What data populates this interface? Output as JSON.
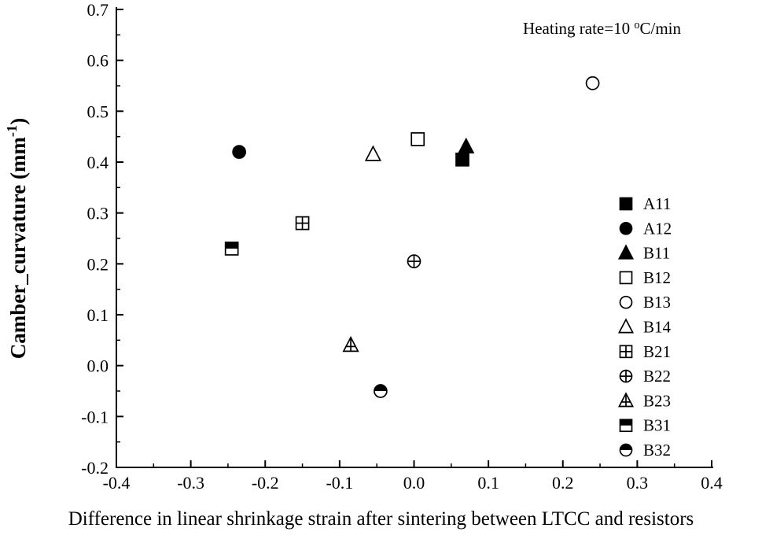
{
  "chart_data": {
    "type": "scatter",
    "title": "",
    "xlabel": "Difference in linear shrinkage strain after sintering between LTCC and resistors",
    "ylabel": {
      "text": "Camber_curvature (mm⁻¹)",
      "prefix": "Camber_curvature (mm",
      "sup": "-1",
      "suffix": ")"
    },
    "annotation": {
      "text": "Heating rate=10 °C/min",
      "prefix": "Heating rate=10 ",
      "sup": "o",
      "suffix": "C/min"
    },
    "xlim": [
      -0.4,
      0.4
    ],
    "ylim": [
      -0.2,
      0.7
    ],
    "x_tick_labels": [
      "-0.4",
      "-0.3",
      "-0.2",
      "-0.1",
      "0.0",
      "0.1",
      "0.2",
      "0.3",
      "0.4"
    ],
    "y_tick_labels": [
      "-0.2",
      "-0.1",
      "0.0",
      "0.1",
      "0.2",
      "0.3",
      "0.4",
      "0.5",
      "0.6",
      "0.7"
    ],
    "grid": false,
    "legend_position": "middle-right",
    "series": [
      {
        "name": "A11",
        "marker": "filled-square",
        "points": [
          [
            0.065,
            0.405
          ]
        ]
      },
      {
        "name": "A12",
        "marker": "filled-circle",
        "points": [
          [
            -0.235,
            0.42
          ]
        ]
      },
      {
        "name": "B11",
        "marker": "filled-triangle",
        "points": [
          [
            0.07,
            0.43
          ]
        ]
      },
      {
        "name": "B12",
        "marker": "open-square",
        "points": [
          [
            0.005,
            0.445
          ]
        ]
      },
      {
        "name": "B13",
        "marker": "open-circle",
        "points": [
          [
            0.24,
            0.555
          ]
        ]
      },
      {
        "name": "B14",
        "marker": "open-triangle",
        "points": [
          [
            -0.055,
            0.415
          ]
        ]
      },
      {
        "name": "B21",
        "marker": "plus-square",
        "points": [
          [
            -0.15,
            0.28
          ]
        ]
      },
      {
        "name": "B22",
        "marker": "plus-circle",
        "points": [
          [
            0.0,
            0.205
          ]
        ]
      },
      {
        "name": "B23",
        "marker": "plus-triangle",
        "points": [
          [
            -0.085,
            0.04
          ]
        ]
      },
      {
        "name": "B31",
        "marker": "half-square",
        "points": [
          [
            -0.245,
            0.23
          ]
        ]
      },
      {
        "name": "B32",
        "marker": "half-circle",
        "points": [
          [
            -0.045,
            -0.05
          ]
        ]
      }
    ],
    "colors": {
      "marker": "#000000",
      "axis": "#000000",
      "background": "#ffffff"
    }
  }
}
